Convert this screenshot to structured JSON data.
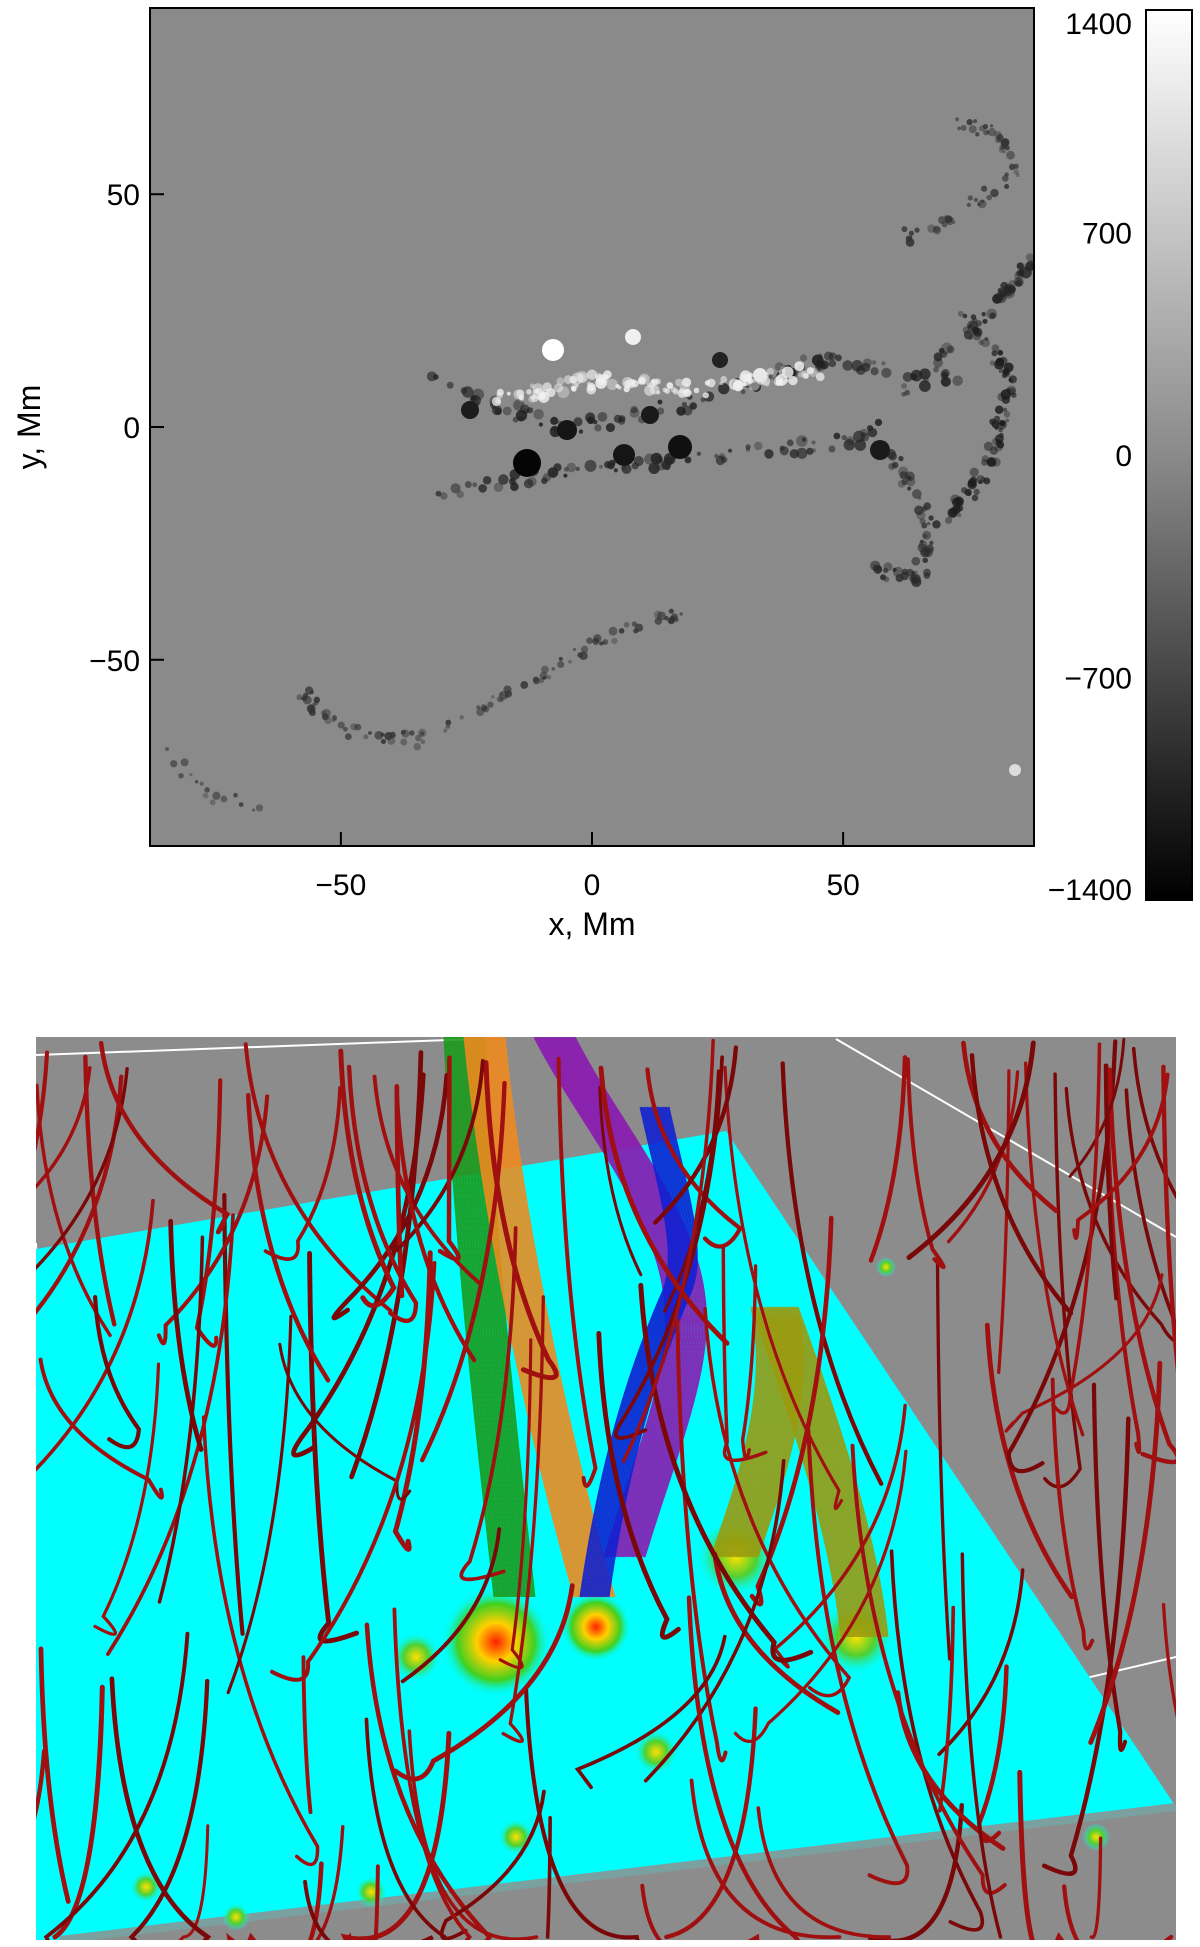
{
  "magnetogram": {
    "x_axis": {
      "label": "x, Mm",
      "range": [
        -88,
        88
      ],
      "ticks": [
        {
          "value": -50,
          "label": "−50"
        },
        {
          "value": 0,
          "label": "0"
        },
        {
          "value": 50,
          "label": "50"
        }
      ]
    },
    "y_axis": {
      "label": "y, Mm",
      "range": [
        -90,
        90
      ],
      "ticks": [
        {
          "value": 50,
          "label": "50"
        },
        {
          "value": 0,
          "label": "0"
        },
        {
          "value": -50,
          "label": "−50"
        }
      ]
    },
    "colorbar": {
      "range": [
        -1400,
        1400
      ],
      "ticks": [
        {
          "value": 1400,
          "label": "1400"
        },
        {
          "value": 700,
          "label": "700"
        },
        {
          "value": 0,
          "label": "0"
        },
        {
          "value": -700,
          "label": "−700"
        },
        {
          "value": -1400,
          "label": "−1400"
        }
      ],
      "colors": {
        "low": "#000000",
        "high": "#ffffff"
      }
    },
    "background_color": "#8a8a8a"
  },
  "fieldlines": {
    "background_color": "#8c8c8c",
    "plane_color": "#00ffff",
    "line_colors": {
      "open_field": "#a01010",
      "flux_green": "#1a9a1a",
      "flux_orange": "#f08a1e",
      "flux_purple": "#8a1ab0",
      "flux_blue": "#1020d0",
      "flux_olive": "#9a9a10"
    }
  }
}
